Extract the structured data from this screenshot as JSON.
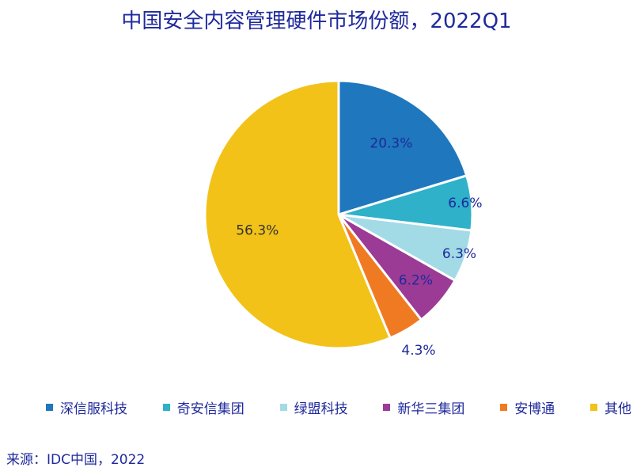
{
  "chart_data": {
    "type": "pie",
    "title": "中国安全内容管理硬件市场份额，2022Q1",
    "categories": [
      "深信服科技",
      "奇安信集团",
      "绿盟科技",
      "新华三集团",
      "安博通",
      "其他"
    ],
    "values": [
      20.3,
      6.6,
      6.3,
      6.2,
      4.3,
      56.3
    ],
    "data_labels": [
      "20.3%",
      "6.6%",
      "6.3%",
      "6.2%",
      "4.3%",
      "56.3%"
    ],
    "colors": [
      "#1f77bd",
      "#2eb1c9",
      "#a2dbe6",
      "#9b3b95",
      "#f07a22",
      "#f2c219"
    ],
    "legend_position": "bottom",
    "start_angle": "12 o'clock",
    "direction": "clockwise"
  },
  "source": "来源：IDC中国，2022"
}
